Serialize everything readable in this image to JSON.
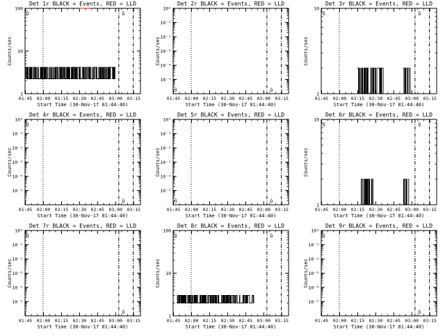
{
  "figure": {
    "xlabel": "Start Time (30-Nov-17 01:44:40)",
    "ylabel": "Counts/sec",
    "x_tick_labels": [
      "01:45",
      "02:00",
      "02:15",
      "02:30",
      "02:45",
      "03:00",
      "03:15"
    ],
    "marker_text": "Ö"
  },
  "chart_data": [
    {
      "type": "line",
      "title": "Det 1r BLACK = Events, RED = LLD",
      "y_tick_labels": [
        "1",
        "10",
        "100"
      ],
      "y_decades": [
        0,
        2
      ],
      "series": [
        {
          "name": "Events",
          "color": "#000000",
          "segments": [
            {
              "t_start": 0,
              "t_end": 75,
              "base": 0.35,
              "peak": 0.62,
              "seed": 11
            }
          ]
        },
        {
          "name": "LLD",
          "color": "#ff0000",
          "segments": [
            {
              "t_start": 45,
              "t_end": 55,
              "base": 2.0,
              "peak": 2.0,
              "seed": 3
            }
          ]
        }
      ],
      "markers": [
        {
          "t": 0.5,
          "level": "top"
        },
        {
          "t": 80,
          "level": "top"
        }
      ]
    },
    {
      "type": "line",
      "title": "Det 2r BLACK = Events, RED = LLD",
      "y_tick_labels": [
        "10⁰",
        "10⁻¹",
        "10⁻²",
        "10⁻³",
        "10⁻⁴",
        "10⁻⁵"
      ],
      "y_decades": [
        -6,
        0
      ],
      "series": [
        {
          "name": "Events",
          "color": "#000000",
          "segments": []
        },
        {
          "name": "LLD",
          "color": "#ff0000",
          "segments": []
        }
      ],
      "markers": [
        {
          "t": 0.5,
          "level": "bottom"
        },
        {
          "t": 80,
          "level": "bottom"
        }
      ]
    },
    {
      "type": "line",
      "title": "Det 3r BLACK = Events, RED = LLD",
      "y_tick_labels": [
        "1",
        "10"
      ],
      "y_decades": [
        0,
        1
      ],
      "series": [
        {
          "name": "Events",
          "color": "#000000",
          "segments": [
            {
              "t_start": 30,
              "t_end": 52,
              "base": 0.0,
              "peak": 0.3,
              "seed": 21
            },
            {
              "t_start": 68,
              "t_end": 74,
              "base": 0.0,
              "peak": 0.3,
              "seed": 22
            }
          ]
        },
        {
          "name": "LLD",
          "color": "#ff0000",
          "segments": []
        }
      ],
      "markers": [
        {
          "t": 0.5,
          "level": "top"
        },
        {
          "t": 80,
          "level": "top"
        }
      ]
    },
    {
      "type": "line",
      "title": "Det 4r BLACK = Events, RED = LLD",
      "y_tick_labels": [
        "10⁰",
        "10⁻¹",
        "10⁻²",
        "10⁻³",
        "10⁻⁴",
        "10⁻⁵"
      ],
      "y_decades": [
        -6,
        0
      ],
      "series": [
        {
          "name": "Events",
          "color": "#000000",
          "segments": []
        },
        {
          "name": "LLD",
          "color": "#ff0000",
          "segments": []
        }
      ],
      "markers": [
        {
          "t": 0.5,
          "level": "top"
        },
        {
          "t": 80,
          "level": "bottom"
        }
      ]
    },
    {
      "type": "line",
      "title": "Det 5r BLACK = Events, RED = LLD",
      "y_tick_labels": [
        "10⁰",
        "10⁻¹",
        "10⁻²",
        "10⁻³",
        "10⁻⁴",
        "10⁻⁵"
      ],
      "y_decades": [
        -6,
        0
      ],
      "series": [
        {
          "name": "Events",
          "color": "#000000",
          "segments": []
        },
        {
          "name": "LLD",
          "color": "#ff0000",
          "segments": []
        }
      ],
      "markers": [
        {
          "t": 0.5,
          "level": "bottom"
        },
        {
          "t": 80,
          "level": "bottom"
        }
      ]
    },
    {
      "type": "line",
      "title": "Det 6r BLACK = Events, RED = LLD",
      "y_tick_labels": [
        "1",
        "10"
      ],
      "y_decades": [
        0,
        1
      ],
      "series": [
        {
          "name": "Events",
          "color": "#000000",
          "segments": [
            {
              "t_start": 33,
              "t_end": 43,
              "base": 0.0,
              "peak": 0.3,
              "seed": 31
            },
            {
              "t_start": 68,
              "t_end": 73,
              "base": 0.0,
              "peak": 0.3,
              "seed": 32
            }
          ]
        },
        {
          "name": "LLD",
          "color": "#ff0000",
          "segments": []
        }
      ],
      "markers": [
        {
          "t": 0.5,
          "level": "top"
        },
        {
          "t": 80,
          "level": "top"
        }
      ]
    },
    {
      "type": "line",
      "title": "Det 7r BLACK = Events, RED = LLD",
      "y_tick_labels": [
        "10⁰",
        "10⁻¹",
        "10⁻²",
        "10⁻³",
        "10⁻⁴",
        "10⁻⁵"
      ],
      "y_decades": [
        -6,
        0
      ],
      "series": [
        {
          "name": "Events",
          "color": "#000000",
          "segments": []
        },
        {
          "name": "LLD",
          "color": "#ff0000",
          "segments": []
        }
      ],
      "markers": [
        {
          "t": 0.5,
          "level": "top"
        },
        {
          "t": 80,
          "level": "bottom"
        }
      ]
    },
    {
      "type": "line",
      "title": "Det 8r BLACK = Events, RED = LLD",
      "y_tick_labels": [
        "1",
        "10",
        "100"
      ],
      "y_decades": [
        0,
        2
      ],
      "series": [
        {
          "name": "Events",
          "color": "#000000",
          "segments": [
            {
              "t_start": 3,
              "t_end": 67,
              "base": 0.3,
              "peak": 0.48,
              "seed": 41
            }
          ]
        },
        {
          "name": "LLD",
          "color": "#ff0000",
          "segments": []
        }
      ],
      "markers": [
        {
          "t": 0.5,
          "level": "top"
        },
        {
          "t": 80,
          "level": "top"
        }
      ]
    },
    {
      "type": "line",
      "title": "Det 9r BLACK = Events, RED = LLD",
      "y_tick_labels": [
        "10⁰",
        "10⁻¹",
        "10⁻²",
        "10⁻³",
        "10⁻⁴",
        "10⁻⁵"
      ],
      "y_decades": [
        -6,
        0
      ],
      "series": [
        {
          "name": "Events",
          "color": "#000000",
          "segments": []
        },
        {
          "name": "LLD",
          "color": "#ff0000",
          "segments": []
        }
      ],
      "markers": [
        {
          "t": 0.5,
          "level": "top"
        },
        {
          "t": 80,
          "level": "bottom"
        }
      ]
    }
  ],
  "x_range_minutes": [
    0,
    96
  ],
  "x_tick_minutes": [
    0.33,
    15.33,
    30.33,
    45.33,
    60.33,
    75.33,
    90.33
  ],
  "reference_lines_minutes": {
    "dotted": 15,
    "dashdot_1": 78,
    "dashdot_2": 90
  }
}
